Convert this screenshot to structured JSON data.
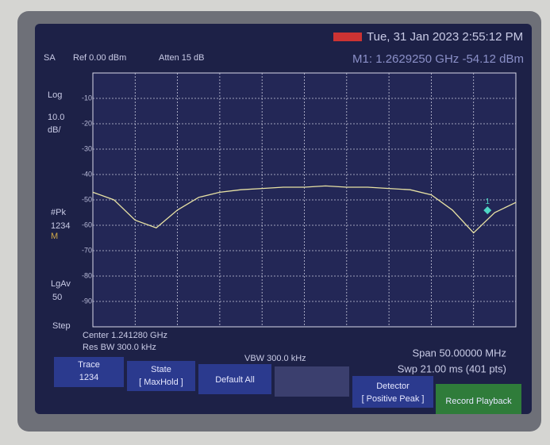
{
  "header": {
    "mode": "SA",
    "ref": "Ref 0.00 dBm",
    "atten": "Atten 15 dB",
    "datetime": "Tue, 31 Jan 2023 2:55:12 PM",
    "marker_readout": "M1: 1.2629250 GHz -54.12 dBm"
  },
  "side": {
    "scale": "Log",
    "per_div": "10.0",
    "per_div_unit": "dB/",
    "detector": "#Pk",
    "traces": "1234",
    "trace_mode": "M",
    "average": "LgAv",
    "average_count": "50",
    "step": "Step"
  },
  "footer": {
    "center": "Center 1.241280 GHz",
    "rbw": "Res BW 300.0 kHz",
    "vbw": "VBW 300.0 kHz",
    "span": "Span 50.00000 MHz",
    "sweep": "Swp 21.00 ms (401 pts)"
  },
  "softkeys": [
    {
      "title": "Trace",
      "value": "1234"
    },
    {
      "title": "State",
      "value": "[ MaxHold ]"
    },
    {
      "title": "Default All"
    },
    {
      "title": "Detector",
      "value": "[ Positive Peak ]"
    },
    {
      "title": "Record Playback"
    }
  ],
  "chart_data": {
    "type": "line",
    "x": [
      1216.28,
      1218.78,
      1221.28,
      1223.78,
      1226.28,
      1228.78,
      1231.28,
      1233.78,
      1236.28,
      1238.78,
      1241.28,
      1243.78,
      1246.28,
      1248.78,
      1251.28,
      1253.78,
      1256.28,
      1258.78,
      1261.28,
      1263.78,
      1266.28
    ],
    "values": [
      -47,
      -50,
      -58,
      -61,
      -54,
      -49,
      -47,
      -46,
      -45.5,
      -45,
      -45,
      -44.5,
      -45,
      -45,
      -45.5,
      -46,
      -48,
      -54,
      -63,
      -55,
      -51
    ],
    "color": "#e8e2a4",
    "xlim": [
      1216.28,
      1266.28
    ],
    "ylim": [
      -100,
      0
    ],
    "yticks": [
      -10,
      -20,
      -30,
      -40,
      -50,
      -60,
      -70,
      -80,
      -90
    ],
    "grid": true,
    "marker": {
      "label": "1",
      "x": 1262.925,
      "value": -54.12,
      "color": "#4fd6c4"
    }
  }
}
